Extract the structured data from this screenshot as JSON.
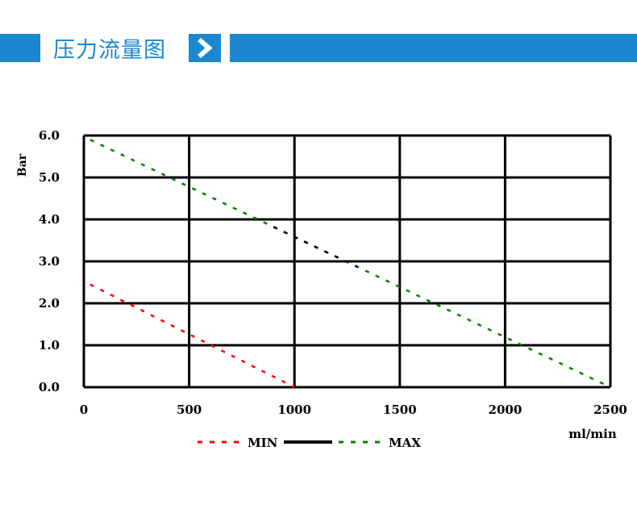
{
  "header": {
    "title": "压力流量图",
    "accent_color": "#1a87d0",
    "arrow_icon": "chevron-right-icon"
  },
  "chart_data": {
    "type": "line",
    "title": "压力流量图",
    "xlabel": "ml/min",
    "ylabel": "Bar",
    "xlim": [
      0,
      2500
    ],
    "ylim": [
      0,
      6
    ],
    "x_ticks": [
      "0",
      "500",
      "1000",
      "1500",
      "2000",
      "2500"
    ],
    "y_ticks": [
      "0.0",
      "1.0",
      "2.0",
      "3.0",
      "4.0",
      "5.0",
      "6.0"
    ],
    "grid": true,
    "legend_position": "bottom",
    "series": [
      {
        "name": "MIN",
        "color": "#ff0000",
        "style": "dashed",
        "x": [
          30,
          1000
        ],
        "y": [
          2.45,
          0.0
        ]
      },
      {
        "name": "MAX",
        "color": "#008000",
        "style": "dashed",
        "x": [
          30,
          2500
        ],
        "y": [
          5.9,
          0.0
        ]
      }
    ],
    "legend": [
      {
        "label": "MIN",
        "color": "#ff0000",
        "style": "dashed"
      },
      {
        "label": "",
        "color": "#000000",
        "style": "solid"
      },
      {
        "label": "MAX",
        "color": "#008000",
        "style": "dashed"
      }
    ],
    "annotations": [
      "Black dashed segment on MAX line from ~900 to ~1300 ml/min"
    ]
  }
}
